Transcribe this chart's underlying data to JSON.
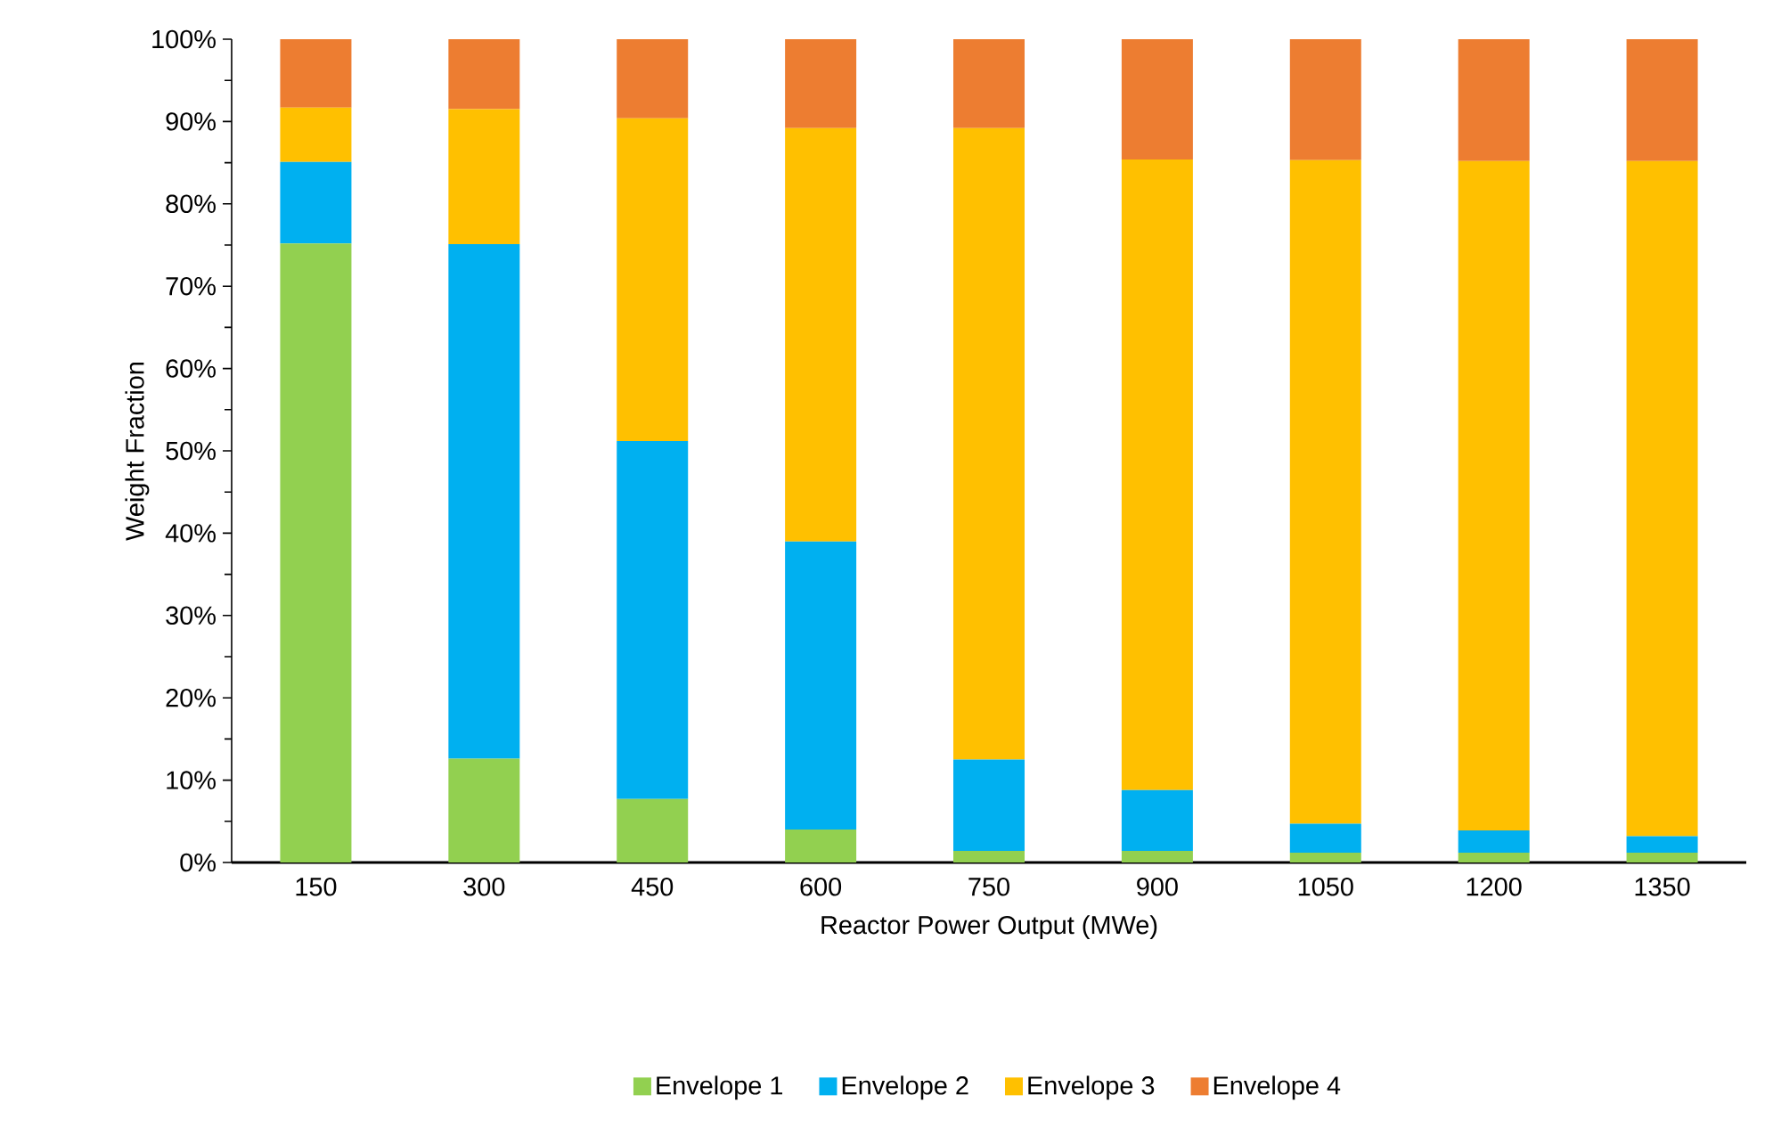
{
  "chart_data": {
    "type": "bar",
    "stacked": true,
    "xlabel": "Reactor Power Output (MWe)",
    "ylabel": "Weight Fraction",
    "categories": [
      "150",
      "300",
      "450",
      "600",
      "750",
      "900",
      "1050",
      "1200",
      "1350"
    ],
    "series": [
      {
        "name": "Envelope 1",
        "color": "#92d050",
        "values": [
          75.2,
          12.6,
          7.7,
          4.0,
          1.4,
          1.4,
          1.2,
          1.2,
          1.2
        ]
      },
      {
        "name": "Envelope 2",
        "color": "#00b0f0",
        "values": [
          9.9,
          62.5,
          43.5,
          35.0,
          11.1,
          7.4,
          3.5,
          2.7,
          2.0
        ]
      },
      {
        "name": "Envelope 3",
        "color": "#ffc000",
        "values": [
          6.6,
          16.4,
          39.2,
          50.2,
          76.7,
          76.6,
          80.6,
          81.3,
          82.0
        ]
      },
      {
        "name": "Envelope 4",
        "color": "#ed7d31",
        "values": [
          8.3,
          8.5,
          9.6,
          10.8,
          10.8,
          14.6,
          14.7,
          14.8,
          14.8
        ]
      }
    ],
    "ylim": [
      0,
      100
    ],
    "yticks": [
      {
        "value": 0,
        "label": "0%"
      },
      {
        "value": 10,
        "label": "10%"
      },
      {
        "value": 20,
        "label": "20%"
      },
      {
        "value": 30,
        "label": "30%"
      },
      {
        "value": 40,
        "label": "40%"
      },
      {
        "value": 50,
        "label": "50%"
      },
      {
        "value": 60,
        "label": "60%"
      },
      {
        "value": 70,
        "label": "70%"
      },
      {
        "value": 80,
        "label": "80%"
      },
      {
        "value": 90,
        "label": "90%"
      },
      {
        "value": 100,
        "label": "100%"
      }
    ],
    "grid": false,
    "legend": "bottom"
  }
}
